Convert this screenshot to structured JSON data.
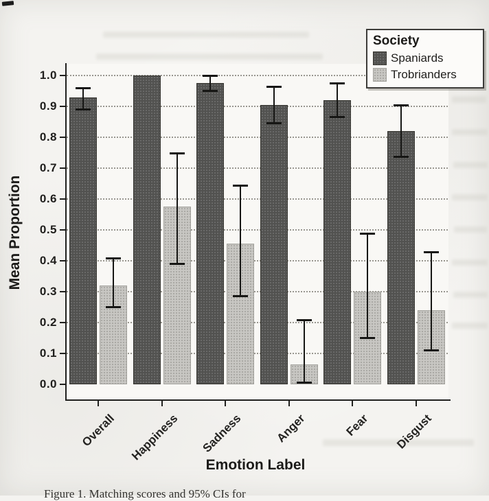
{
  "chart_data": {
    "type": "bar",
    "title": "",
    "xlabel": "Emotion Label",
    "ylabel": "Mean Proportion",
    "categories": [
      "Overall",
      "Happiness",
      "Sadness",
      "Anger",
      "Fear",
      "Disgust"
    ],
    "y_ticks": [
      "0.0",
      "0.1",
      "0.2",
      "0.3",
      "0.4",
      "0.5",
      "0.6",
      "0.7",
      "0.8",
      "0.9",
      "1.0"
    ],
    "ylim": [
      0,
      1.05
    ],
    "grid": "horizontal dotted lines at 0.1 intervals",
    "error_bars": "95% CI",
    "legend": {
      "title": "Society",
      "position": "top-right",
      "entries": [
        "Spaniards",
        "Trobrianders"
      ]
    },
    "series": [
      {
        "name": "Spaniards",
        "swatch": "dark-gray",
        "color": "#525250",
        "values": [
          0.93,
          1.0,
          0.975,
          0.905,
          0.92,
          0.82
        ],
        "ci_low": [
          0.89,
          null,
          0.95,
          0.845,
          0.865,
          0.735
        ],
        "ci_high": [
          0.96,
          null,
          1.0,
          0.965,
          0.975,
          0.905
        ]
      },
      {
        "name": "Trobrianders",
        "swatch": "light-gray",
        "color": "#c8c7c3",
        "values": [
          0.32,
          0.575,
          0.455,
          0.065,
          0.3,
          0.24
        ],
        "ci_low": [
          0.25,
          0.39,
          0.285,
          0.005,
          0.15,
          0.11
        ],
        "ci_high": [
          0.41,
          0.75,
          0.645,
          0.21,
          0.49,
          0.43
        ]
      }
    ]
  },
  "caption": "Figure 1.  Matching scores and 95% CIs for"
}
